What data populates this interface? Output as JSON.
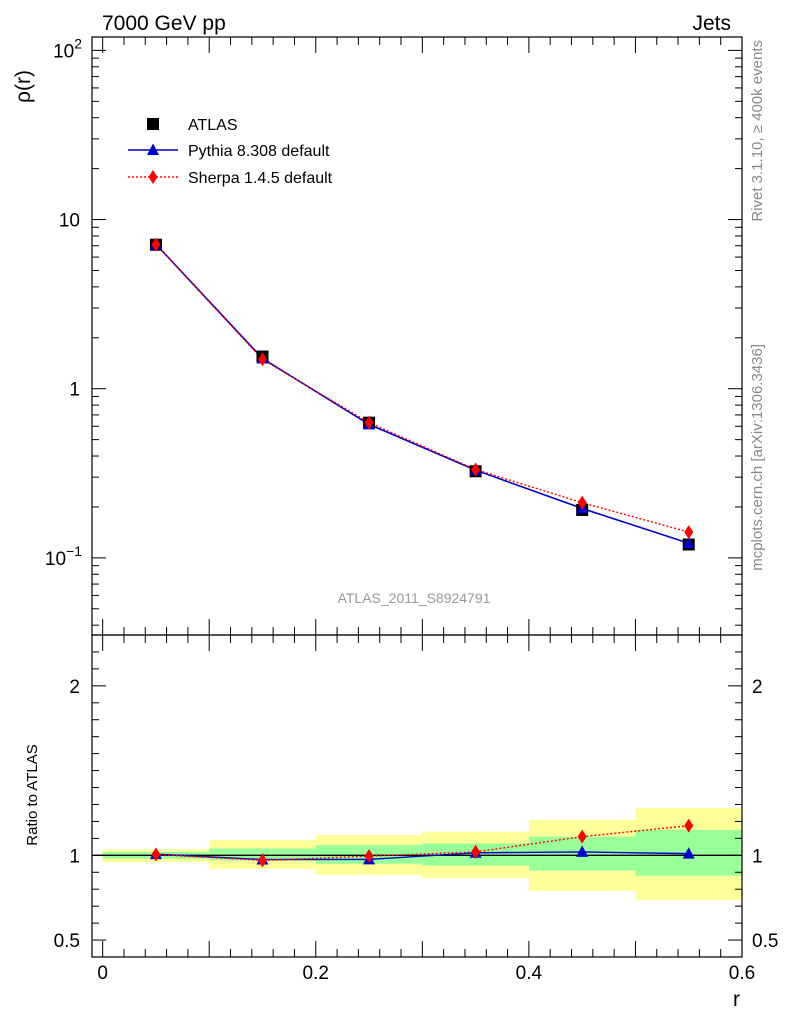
{
  "header": {
    "left": "7000 GeV pp",
    "right": "Jets"
  },
  "side_text": {
    "rivet": "Rivet 3.1.10, ≥ 400k events",
    "mcplots": "mcplots.cern.ch [arXiv:1306.3436]"
  },
  "analysis_label": "ATLAS_2011_S8924791",
  "legend": [
    {
      "key": "data",
      "label": "ATLAS"
    },
    {
      "key": "pythia",
      "label": "Pythia 8.308 default"
    },
    {
      "key": "sherpa",
      "label": "Sherpa 1.4.5 default"
    }
  ],
  "colors": {
    "data": "#000000",
    "pythia": "#0000cc",
    "sherpa": "#ff0000",
    "band_inner": "#99ff99",
    "band_outer": "#ffff99",
    "side_text": "#888888",
    "label_text": "#999999"
  },
  "chart_data": [
    {
      "type": "line",
      "panel": "main",
      "ylabel": "ρ(r)",
      "yscale": "log",
      "ylim": [
        0.035,
        120
      ],
      "xlim": [
        -0.01,
        0.6
      ],
      "y_ticks": [
        {
          "v": 0.1,
          "base": "10",
          "exp": "−1"
        },
        {
          "v": 1,
          "base": "1",
          "exp": ""
        },
        {
          "v": 10,
          "base": "10",
          "exp": ""
        },
        {
          "v": 100,
          "base": "10",
          "exp": "2"
        }
      ],
      "x": [
        0.05,
        0.15,
        0.25,
        0.35,
        0.45,
        0.55
      ],
      "x_edges": [
        0.0,
        0.1,
        0.2,
        0.3,
        0.4,
        0.5,
        0.6
      ],
      "series": [
        {
          "name": "ATLAS",
          "key": "data",
          "values": [
            7.1,
            1.55,
            0.63,
            0.325,
            0.192,
            0.12
          ]
        },
        {
          "name": "Pythia 8.308 default",
          "key": "pythia",
          "values": [
            7.15,
            1.51,
            0.615,
            0.33,
            0.196,
            0.122
          ]
        },
        {
          "name": "Sherpa 1.4.5 default",
          "key": "sherpa",
          "values": [
            7.12,
            1.49,
            0.63,
            0.333,
            0.212,
            0.142
          ]
        }
      ]
    },
    {
      "type": "line",
      "panel": "ratio",
      "xlabel": "r",
      "ylabel": "Ratio to ATLAS",
      "ylim": [
        0.4,
        2.3
      ],
      "xlim": [
        -0.01,
        0.6
      ],
      "x_ticks": [
        "0",
        "0.2",
        "0.4",
        "0.6"
      ],
      "x_tick_values": [
        0,
        0.2,
        0.4,
        0.6
      ],
      "y_ticks": [
        "0.5",
        "1",
        "2"
      ],
      "y_tick_values": [
        0.5,
        1,
        2
      ],
      "x": [
        0.05,
        0.15,
        0.25,
        0.35,
        0.45,
        0.55
      ],
      "x_edges": [
        0.0,
        0.1,
        0.2,
        0.3,
        0.4,
        0.5,
        0.6
      ],
      "band_inner": [
        [
          0.98,
          1.02
        ],
        [
          0.97,
          1.04
        ],
        [
          0.95,
          1.06
        ],
        [
          0.94,
          1.07
        ],
        [
          0.91,
          1.11
        ],
        [
          0.88,
          1.15
        ]
      ],
      "band_outer": [
        [
          0.96,
          1.035
        ],
        [
          0.92,
          1.09
        ],
        [
          0.885,
          1.12
        ],
        [
          0.865,
          1.14
        ],
        [
          0.79,
          1.21
        ],
        [
          0.735,
          1.28
        ]
      ],
      "series": [
        {
          "name": "Pythia 8.308 default",
          "key": "pythia",
          "values": [
            1.007,
            0.975,
            0.976,
            1.015,
            1.02,
            1.01
          ],
          "errors": [
            0.008,
            0.012,
            0.015,
            0.015,
            0.015,
            0.01
          ]
        },
        {
          "name": "Sherpa 1.4.5 default",
          "key": "sherpa",
          "values": [
            1.005,
            0.97,
            0.995,
            1.02,
            1.11,
            1.175
          ],
          "errors": [
            0.01,
            0.03,
            0.035,
            0.04,
            0.035,
            0.03
          ]
        }
      ]
    }
  ]
}
